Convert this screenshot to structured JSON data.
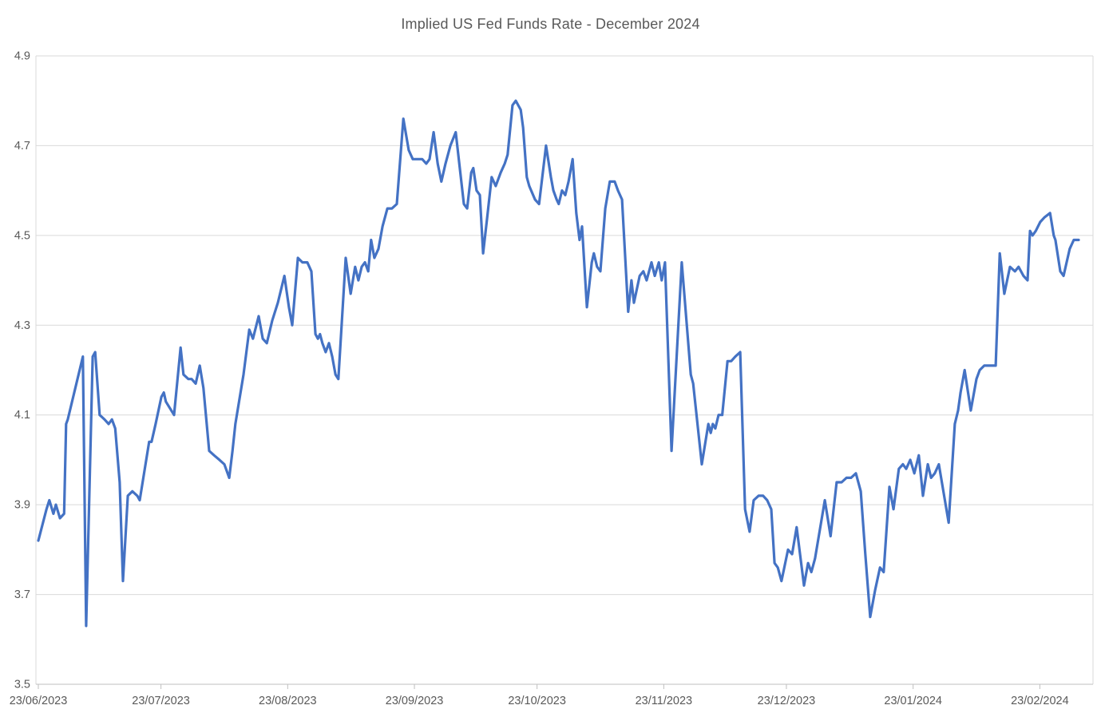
{
  "title": "Implied US Fed Funds Rate - December 2024",
  "chart_data": {
    "type": "line",
    "title": "Implied US Fed Funds Rate - December 2024",
    "xlabel": "",
    "ylabel": "",
    "legend": false,
    "grid": true,
    "line_color": "#4472C4",
    "grid_color": "#D9D9D9",
    "axis_color": "#BFBFBF",
    "text_color": "#595959",
    "ylim": [
      3.5,
      4.9
    ],
    "y_ticks": [
      3.5,
      3.7,
      3.9,
      4.1,
      4.3,
      4.5,
      4.7,
      4.9
    ],
    "y_tick_labels": [
      "3.5",
      "3.7",
      "3.9",
      "4.1",
      "4.3",
      "4.5",
      "4.7",
      "4.9"
    ],
    "x_tick_labels": [
      "23/06/2023",
      "23/07/2023",
      "23/08/2023",
      "23/09/2023",
      "23/10/2023",
      "23/11/2023",
      "23/12/2023",
      "23/01/2024",
      "23/02/2024"
    ],
    "x_tick_days": [
      0,
      30,
      61,
      92,
      122,
      153,
      183,
      214,
      245
    ],
    "xlim_days": [
      0,
      257
    ],
    "points_note": "pairs of [days since 23/06/2023, implied rate %], values estimated from plot",
    "points": [
      [
        0,
        3.82
      ],
      [
        2,
        3.89
      ],
      [
        2.7,
        3.91
      ],
      [
        3.7,
        3.88
      ],
      [
        4.3,
        3.9
      ],
      [
        5.3,
        3.87
      ],
      [
        6.3,
        3.88
      ],
      [
        6.8,
        4.08
      ],
      [
        7.2,
        4.09
      ],
      [
        10.9,
        4.23
      ],
      [
        11.7,
        3.63
      ],
      [
        13.3,
        4.23
      ],
      [
        13.9,
        4.24
      ],
      [
        15,
        4.1
      ],
      [
        16.2,
        4.09
      ],
      [
        17.2,
        4.08
      ],
      [
        18,
        4.09
      ],
      [
        18.8,
        4.07
      ],
      [
        19.9,
        3.95
      ],
      [
        20.7,
        3.73
      ],
      [
        21.9,
        3.92
      ],
      [
        23,
        3.93
      ],
      [
        24.2,
        3.92
      ],
      [
        24.8,
        3.91
      ],
      [
        27.1,
        4.04
      ],
      [
        27.7,
        4.04
      ],
      [
        28.7,
        4.08
      ],
      [
        30.1,
        4.14
      ],
      [
        30.7,
        4.15
      ],
      [
        31.2,
        4.13
      ],
      [
        33.2,
        4.1
      ],
      [
        34.8,
        4.25
      ],
      [
        35.5,
        4.19
      ],
      [
        36.7,
        4.18
      ],
      [
        37.5,
        4.18
      ],
      [
        38.5,
        4.17
      ],
      [
        39.5,
        4.21
      ],
      [
        40.4,
        4.16
      ],
      [
        41.8,
        4.02
      ],
      [
        43,
        4.01
      ],
      [
        44.3,
        4.0
      ],
      [
        45.5,
        3.99
      ],
      [
        46.7,
        3.96
      ],
      [
        47.5,
        4.02
      ],
      [
        48.2,
        4.08
      ],
      [
        50.2,
        4.19
      ],
      [
        51.6,
        4.29
      ],
      [
        52.5,
        4.27
      ],
      [
        53.9,
        4.32
      ],
      [
        54.9,
        4.27
      ],
      [
        55.9,
        4.26
      ],
      [
        57.2,
        4.31
      ],
      [
        58.6,
        4.35
      ],
      [
        60.2,
        4.41
      ],
      [
        61.3,
        4.34
      ],
      [
        62.1,
        4.3
      ],
      [
        63.5,
        4.45
      ],
      [
        64.6,
        4.44
      ],
      [
        65.8,
        4.44
      ],
      [
        66.8,
        4.42
      ],
      [
        67.8,
        4.28
      ],
      [
        68.4,
        4.27
      ],
      [
        68.9,
        4.28
      ],
      [
        69.5,
        4.26
      ],
      [
        70.3,
        4.24
      ],
      [
        71.1,
        4.26
      ],
      [
        71.9,
        4.23
      ],
      [
        72.7,
        4.19
      ],
      [
        73.4,
        4.18
      ],
      [
        75.2,
        4.45
      ],
      [
        76.4,
        4.37
      ],
      [
        77.5,
        4.43
      ],
      [
        78.3,
        4.4
      ],
      [
        79.1,
        4.43
      ],
      [
        79.9,
        4.44
      ],
      [
        80.7,
        4.42
      ],
      [
        81.4,
        4.49
      ],
      [
        82.2,
        4.45
      ],
      [
        83.2,
        4.47
      ],
      [
        84.2,
        4.52
      ],
      [
        85.4,
        4.56
      ],
      [
        86.5,
        4.56
      ],
      [
        87.7,
        4.57
      ],
      [
        89.3,
        4.76
      ],
      [
        90.6,
        4.69
      ],
      [
        91.6,
        4.67
      ],
      [
        92.8,
        4.67
      ],
      [
        93.9,
        4.67
      ],
      [
        94.9,
        4.66
      ],
      [
        95.7,
        4.67
      ],
      [
        96.7,
        4.73
      ],
      [
        97.7,
        4.66
      ],
      [
        98.6,
        4.62
      ],
      [
        99.6,
        4.66
      ],
      [
        100.8,
        4.7
      ],
      [
        102.1,
        4.73
      ],
      [
        104.1,
        4.57
      ],
      [
        104.9,
        4.56
      ],
      [
        105.9,
        4.64
      ],
      [
        106.4,
        4.65
      ],
      [
        107.2,
        4.6
      ],
      [
        108,
        4.59
      ],
      [
        108.8,
        4.46
      ],
      [
        109.8,
        4.54
      ],
      [
        110.9,
        4.63
      ],
      [
        111.9,
        4.61
      ],
      [
        113.1,
        4.64
      ],
      [
        114.1,
        4.66
      ],
      [
        114.8,
        4.68
      ],
      [
        116,
        4.79
      ],
      [
        116.8,
        4.8
      ],
      [
        118,
        4.78
      ],
      [
        118.6,
        4.74
      ],
      [
        119.5,
        4.63
      ],
      [
        120.1,
        4.61
      ],
      [
        121.5,
        4.58
      ],
      [
        122.5,
        4.57
      ],
      [
        124.2,
        4.7
      ],
      [
        125.4,
        4.63
      ],
      [
        126,
        4.6
      ],
      [
        126.8,
        4.58
      ],
      [
        127.3,
        4.57
      ],
      [
        128.1,
        4.6
      ],
      [
        128.9,
        4.59
      ],
      [
        129.7,
        4.62
      ],
      [
        130.7,
        4.67
      ],
      [
        131.6,
        4.55
      ],
      [
        132.4,
        4.49
      ],
      [
        133,
        4.52
      ],
      [
        134.2,
        4.34
      ],
      [
        135.4,
        4.44
      ],
      [
        135.9,
        4.46
      ],
      [
        136.7,
        4.43
      ],
      [
        137.5,
        4.42
      ],
      [
        138.7,
        4.56
      ],
      [
        139.8,
        4.62
      ],
      [
        141,
        4.62
      ],
      [
        141.8,
        4.6
      ],
      [
        142.8,
        4.58
      ],
      [
        144.3,
        4.33
      ],
      [
        145.1,
        4.4
      ],
      [
        145.7,
        4.35
      ],
      [
        147.1,
        4.41
      ],
      [
        148,
        4.42
      ],
      [
        148.8,
        4.4
      ],
      [
        150,
        4.44
      ],
      [
        150.8,
        4.41
      ],
      [
        151.8,
        4.44
      ],
      [
        152.5,
        4.4
      ],
      [
        153.3,
        4.44
      ],
      [
        154.9,
        4.02
      ],
      [
        157.4,
        4.44
      ],
      [
        159.6,
        4.19
      ],
      [
        160.2,
        4.17
      ],
      [
        162.3,
        3.99
      ],
      [
        163.9,
        4.08
      ],
      [
        164.5,
        4.06
      ],
      [
        165,
        4.08
      ],
      [
        165.6,
        4.07
      ],
      [
        166.4,
        4.1
      ],
      [
        167.3,
        4.1
      ],
      [
        168.6,
        4.22
      ],
      [
        169.5,
        4.22
      ],
      [
        170.5,
        4.23
      ],
      [
        171.7,
        4.24
      ],
      [
        172.9,
        3.89
      ],
      [
        174,
        3.84
      ],
      [
        175,
        3.91
      ],
      [
        176.2,
        3.92
      ],
      [
        177.3,
        3.92
      ],
      [
        178.3,
        3.91
      ],
      [
        179.3,
        3.89
      ],
      [
        180.1,
        3.77
      ],
      [
        180.9,
        3.76
      ],
      [
        181.8,
        3.73
      ],
      [
        183.4,
        3.8
      ],
      [
        184.4,
        3.79
      ],
      [
        185.5,
        3.85
      ],
      [
        187.3,
        3.72
      ],
      [
        188.3,
        3.77
      ],
      [
        189.1,
        3.75
      ],
      [
        190,
        3.78
      ],
      [
        192.4,
        3.91
      ],
      [
        193.8,
        3.83
      ],
      [
        195.3,
        3.95
      ],
      [
        196.5,
        3.95
      ],
      [
        197.7,
        3.96
      ],
      [
        198.8,
        3.96
      ],
      [
        200,
        3.97
      ],
      [
        201.2,
        3.93
      ],
      [
        202.3,
        3.79
      ],
      [
        203.5,
        3.65
      ],
      [
        204.7,
        3.71
      ],
      [
        205.9,
        3.76
      ],
      [
        206.8,
        3.75
      ],
      [
        208.2,
        3.94
      ],
      [
        209.2,
        3.89
      ],
      [
        210.5,
        3.98
      ],
      [
        211.5,
        3.99
      ],
      [
        212.3,
        3.98
      ],
      [
        213.3,
        4.0
      ],
      [
        214.3,
        3.97
      ],
      [
        215.4,
        4.01
      ],
      [
        216.4,
        3.92
      ],
      [
        217.6,
        3.99
      ],
      [
        218.4,
        3.96
      ],
      [
        219.3,
        3.97
      ],
      [
        220.3,
        3.99
      ],
      [
        222.7,
        3.86
      ],
      [
        224.2,
        4.08
      ],
      [
        225,
        4.11
      ],
      [
        225.6,
        4.15
      ],
      [
        226.6,
        4.2
      ],
      [
        228.1,
        4.11
      ],
      [
        229.5,
        4.18
      ],
      [
        230.3,
        4.2
      ],
      [
        231.4,
        4.21
      ],
      [
        232.8,
        4.21
      ],
      [
        234.2,
        4.21
      ],
      [
        235.2,
        4.46
      ],
      [
        236.3,
        4.37
      ],
      [
        237.7,
        4.43
      ],
      [
        238.9,
        4.42
      ],
      [
        239.8,
        4.43
      ],
      [
        241,
        4.41
      ],
      [
        242,
        4.4
      ],
      [
        242.6,
        4.51
      ],
      [
        243.2,
        4.5
      ],
      [
        244,
        4.51
      ],
      [
        245.1,
        4.53
      ],
      [
        246.1,
        4.54
      ],
      [
        247.5,
        4.55
      ],
      [
        248.4,
        4.5
      ],
      [
        248.8,
        4.49
      ],
      [
        250,
        4.42
      ],
      [
        250.8,
        4.41
      ],
      [
        252.3,
        4.47
      ],
      [
        253.3,
        4.49
      ],
      [
        254.5,
        4.49
      ]
    ]
  }
}
